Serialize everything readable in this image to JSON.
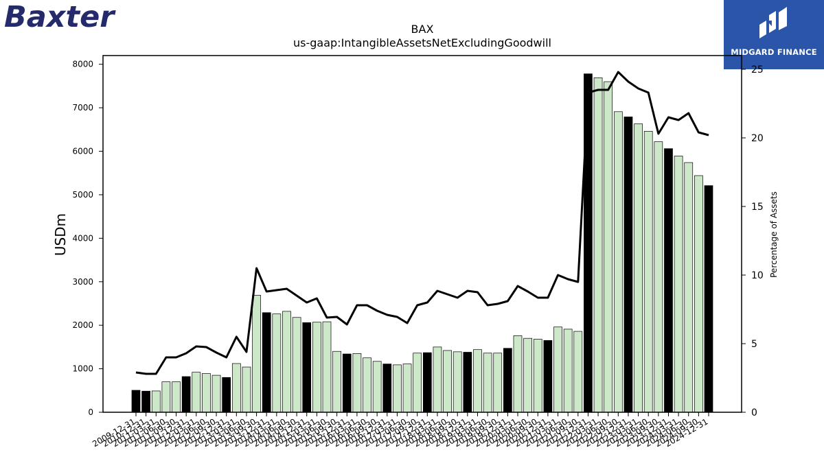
{
  "logos": {
    "left_brand": "Baxter",
    "right_brand": "MIDGARD FINANCE"
  },
  "colors": {
    "bar_q4": "#000000",
    "bar_other": "#cde8c8",
    "bar_edge": "#000000",
    "line": "#000000",
    "brand_blue": "#252a6b",
    "midgard_blue": "#2a55a8"
  },
  "chart_data": {
    "type": "bar",
    "title": "BAX",
    "subtitle": "us-gaap:IntangibleAssetsNetExcludingGoodwill",
    "ylabel": "USDm",
    "y2label": "Percentage of Assets",
    "ylim": [
      0,
      8200
    ],
    "y2lim": [
      0,
      26
    ],
    "yticks": [
      0,
      1000,
      2000,
      3000,
      4000,
      5000,
      6000,
      7000,
      8000
    ],
    "y2ticks": [
      0,
      5,
      10,
      15,
      20,
      25
    ],
    "grid": false,
    "categories": [
      "2009-12-31",
      "2010-12-31",
      "2011-03-31",
      "2011-06-30",
      "2011-09-30",
      "2011-12-31",
      "2012-03-31",
      "2012-06-30",
      "2012-09-30",
      "2012-12-31",
      "2013-03-31",
      "2013-06-30",
      "2013-09-30",
      "2013-12-31",
      "2014-03-31",
      "2014-06-30",
      "2014-09-30",
      "2014-12-31",
      "2015-03-31",
      "2015-06-30",
      "2015-09-30",
      "2015-12-31",
      "2016-03-31",
      "2016-06-30",
      "2016-09-30",
      "2016-12-31",
      "2017-03-31",
      "2017-06-30",
      "2017-09-30",
      "2017-12-31",
      "2018-03-31",
      "2018-06-30",
      "2018-09-30",
      "2018-12-31",
      "2019-03-31",
      "2019-06-30",
      "2019-09-30",
      "2019-12-31",
      "2020-03-31",
      "2020-06-30",
      "2020-09-30",
      "2020-12-31",
      "2021-03-31",
      "2021-06-30",
      "2021-09-30",
      "2021-12-31",
      "2022-03-31",
      "2022-06-30",
      "2022-09-30",
      "2022-12-31",
      "2023-03-31",
      "2023-06-30",
      "2023-09-30",
      "2023-12-31",
      "2024-03-31",
      "2024-06-30",
      "2024-09-30",
      "2024-12-31"
    ],
    "series": [
      {
        "name": "USDm",
        "values": [
          505,
          485,
          490,
          700,
          700,
          820,
          920,
          890,
          850,
          800,
          1120,
          1040,
          2690,
          2290,
          2260,
          2320,
          2180,
          2060,
          2070,
          2080,
          1400,
          1340,
          1350,
          1250,
          1170,
          1110,
          1090,
          1110,
          1360,
          1370,
          1500,
          1420,
          1390,
          1380,
          1440,
          1360,
          1360,
          1470,
          1760,
          1700,
          1680,
          1650,
          1960,
          1910,
          1860,
          7780,
          7690,
          7600,
          6910,
          6790,
          6630,
          6460,
          6220,
          6060,
          5890,
          5740,
          5440,
          5210
        ]
      },
      {
        "name": "Percentage of Assets",
        "values": [
          2.9,
          2.8,
          2.8,
          4.0,
          4.0,
          4.3,
          4.8,
          4.75,
          4.35,
          4.0,
          5.5,
          4.4,
          10.5,
          8.8,
          8.9,
          9.0,
          8.5,
          8.0,
          8.3,
          6.9,
          6.95,
          6.4,
          7.8,
          7.8,
          7.4,
          7.1,
          6.95,
          6.5,
          7.8,
          8.0,
          8.85,
          8.6,
          8.35,
          8.85,
          8.75,
          7.8,
          7.9,
          8.1,
          9.2,
          8.8,
          8.35,
          8.35,
          10.0,
          9.7,
          9.5,
          23.3,
          23.5,
          23.5,
          24.8,
          24.1,
          23.6,
          23.3,
          20.3,
          21.5,
          21.3,
          21.8,
          20.4,
          20.2
        ]
      }
    ]
  }
}
